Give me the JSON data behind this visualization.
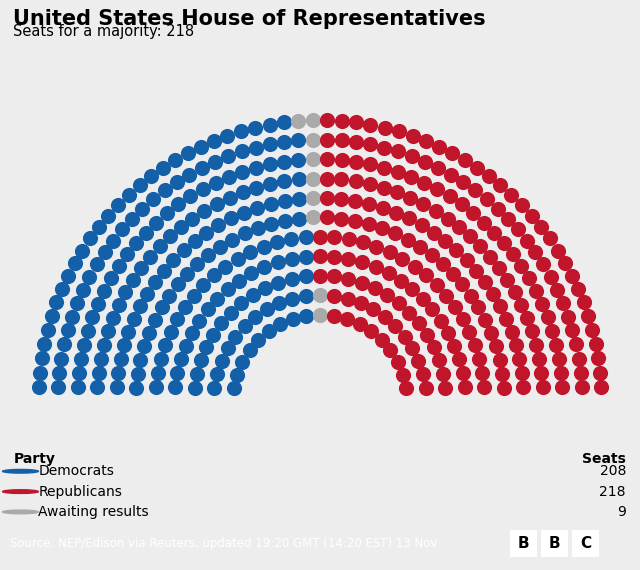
{
  "title": "United States House of Representatives",
  "subtitle": "Seats for a majority: 218",
  "democrats": 208,
  "republicans": 218,
  "awaiting": 9,
  "total": 435,
  "dem_color": "#1460A8",
  "rep_color": "#C0152B",
  "await_color": "#AAAAAA",
  "bg_color": "#EDEDED",
  "footer_bg": "#1A1A1A",
  "footer_text": "Source: NEP/Edison via Reuters, updated 19:20 GMT (14:20 EST) 13 Nov",
  "party_label": "Party",
  "seats_label": "Seats",
  "legend_items": [
    "Democrats",
    "Republicans",
    "Awaiting results"
  ],
  "legend_counts": [
    208,
    218,
    9
  ],
  "legend_colors": [
    "#1460A8",
    "#C0152B",
    "#AAAAAA"
  ],
  "n_rows": 11
}
